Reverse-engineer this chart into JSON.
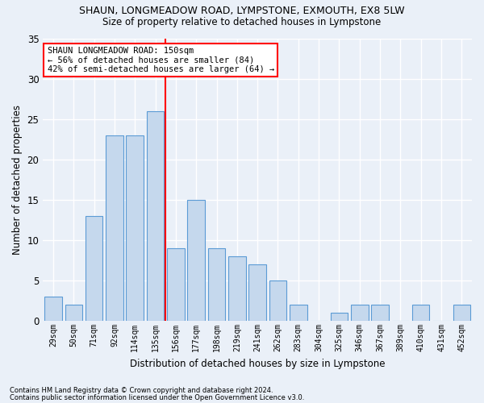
{
  "title": "SHAUN, LONGMEADOW ROAD, LYMPSTONE, EXMOUTH, EX8 5LW",
  "subtitle": "Size of property relative to detached houses in Lympstone",
  "xlabel": "Distribution of detached houses by size in Lympstone",
  "ylabel": "Number of detached properties",
  "categories": [
    "29sqm",
    "50sqm",
    "71sqm",
    "92sqm",
    "114sqm",
    "135sqm",
    "156sqm",
    "177sqm",
    "198sqm",
    "219sqm",
    "241sqm",
    "262sqm",
    "283sqm",
    "304sqm",
    "325sqm",
    "346sqm",
    "367sqm",
    "389sqm",
    "410sqm",
    "431sqm",
    "452sqm"
  ],
  "values": [
    3,
    2,
    13,
    23,
    23,
    26,
    9,
    15,
    9,
    8,
    7,
    5,
    2,
    0,
    1,
    2,
    2,
    0,
    2,
    0,
    2
  ],
  "bar_color": "#c5d8ed",
  "bar_edge_color": "#5b9bd5",
  "red_line_index": 5,
  "annotation_title": "SHAUN LONGMEADOW ROAD: 150sqm",
  "annotation_line1": "← 56% of detached houses are smaller (84)",
  "annotation_line2": "42% of semi-detached houses are larger (64) →",
  "ylim": [
    0,
    35
  ],
  "yticks": [
    0,
    5,
    10,
    15,
    20,
    25,
    30,
    35
  ],
  "footer1": "Contains HM Land Registry data © Crown copyright and database right 2024.",
  "footer2": "Contains public sector information licensed under the Open Government Licence v3.0.",
  "background_color": "#eaf0f8",
  "grid_color": "#ffffff"
}
